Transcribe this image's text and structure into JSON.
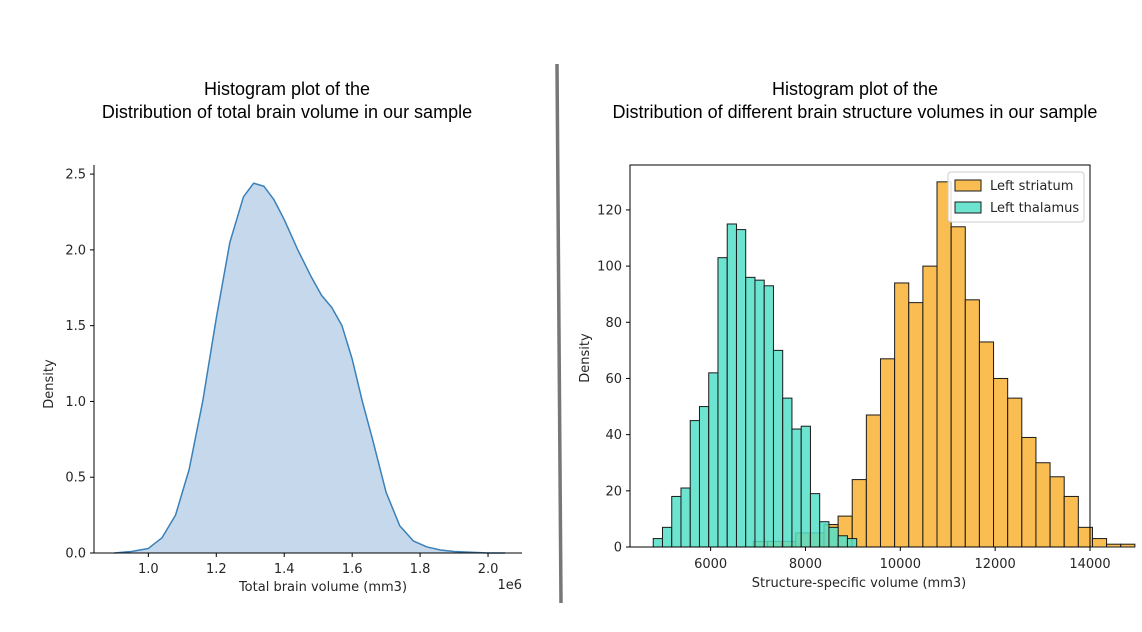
{
  "titles": {
    "left": [
      "Histogram plot of the",
      "Distribution of total brain volume in our sample"
    ],
    "right": [
      "Histogram plot of the",
      "Distribution of different brain structure volumes in our sample"
    ]
  },
  "divider_color": "#777777",
  "chart_data": [
    {
      "type": "area",
      "title": "Histogram plot of the Distribution of total brain volume in our sample",
      "xlabel": "Total brain volume (mm3)",
      "ylabel": "Density",
      "x_offset_text": "1e6",
      "xlim": [
        0.84,
        2.1
      ],
      "ylim": [
        0,
        2.56
      ],
      "xticks": [
        1.0,
        1.2,
        1.4,
        1.6,
        1.8,
        2.0
      ],
      "xtick_labels": [
        "1.0",
        "1.2",
        "1.4",
        "1.6",
        "1.8",
        "2.0"
      ],
      "yticks": [
        0,
        0.5,
        1.0,
        1.5,
        2.0,
        2.5
      ],
      "ytick_labels": [
        "0.0",
        "0.5",
        "1.0",
        "1.5",
        "2.0",
        "2.5"
      ],
      "fill_color": "#c6d9ec",
      "line_color": "#3a80b9",
      "grid": false,
      "series": [
        {
          "x": [
            0.9,
            0.95,
            1.0,
            1.04,
            1.08,
            1.12,
            1.16,
            1.2,
            1.24,
            1.28,
            1.31,
            1.34,
            1.37,
            1.4,
            1.44,
            1.48,
            1.51,
            1.54,
            1.57,
            1.6,
            1.63,
            1.66,
            1.7,
            1.74,
            1.78,
            1.82,
            1.86,
            1.9,
            1.95,
            2.0,
            2.05
          ],
          "y": [
            0.0,
            0.01,
            0.03,
            0.1,
            0.25,
            0.55,
            1.0,
            1.55,
            2.05,
            2.35,
            2.44,
            2.42,
            2.33,
            2.2,
            2.0,
            1.82,
            1.7,
            1.62,
            1.5,
            1.28,
            1.0,
            0.75,
            0.4,
            0.18,
            0.08,
            0.04,
            0.02,
            0.01,
            0.005,
            0.0,
            0.0
          ]
        }
      ]
    },
    {
      "type": "bar",
      "title": "Histogram plot of the Distribution of different brain structure volumes in our sample",
      "xlabel": "Structure-specific volume (mm3)",
      "ylabel": "Density",
      "xlim": [
        4300,
        14000
      ],
      "ylim": [
        0,
        136
      ],
      "xticks": [
        6000,
        8000,
        10000,
        12000,
        14000
      ],
      "xtick_labels": [
        "6000",
        "8000",
        "10000",
        "12000",
        "14000"
      ],
      "yticks": [
        0,
        20,
        40,
        60,
        80,
        100,
        120
      ],
      "ytick_labels": [
        "0",
        "20",
        "40",
        "60",
        "80",
        "100",
        "120"
      ],
      "grid": false,
      "legend": "top-right",
      "series": [
        {
          "name": "Left striatum",
          "color": "#f9b133",
          "bin_start": 6900,
          "bin_width": 298,
          "values": [
            2,
            2,
            2,
            5,
            5,
            8,
            11,
            24,
            47,
            67,
            94,
            87,
            100,
            130,
            114,
            88,
            73,
            60,
            53,
            39,
            30,
            25,
            18,
            7,
            3,
            1,
            1
          ]
        },
        {
          "name": "Left thalamus",
          "color": "#52dfc8",
          "bin_start": 4790,
          "bin_width": 195,
          "values": [
            3,
            7,
            18,
            21,
            45,
            50,
            62,
            103,
            115,
            113,
            96,
            95,
            93,
            70,
            53,
            42,
            43,
            19,
            9,
            7,
            4,
            3
          ]
        }
      ]
    }
  ]
}
